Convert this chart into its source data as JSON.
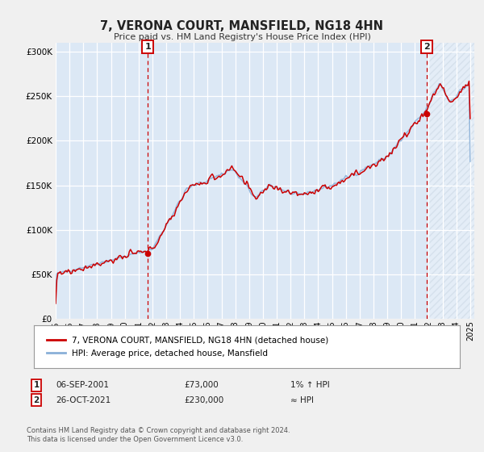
{
  "title": "7, VERONA COURT, MANSFIELD, NG18 4HN",
  "subtitle": "Price paid vs. HM Land Registry's House Price Index (HPI)",
  "bg_color": "#f0f0f0",
  "plot_bg_color": "#dce8f5",
  "line1_color": "#cc0000",
  "line2_color": "#8ab0d8",
  "grid_color": "#c8d8e8",
  "ylim": [
    0,
    310000
  ],
  "yticks": [
    0,
    50000,
    100000,
    150000,
    200000,
    250000,
    300000
  ],
  "ytick_labels": [
    "£0",
    "£50K",
    "£100K",
    "£150K",
    "£200K",
    "£250K",
    "£300K"
  ],
  "xmin": 1995.0,
  "xmax": 2025.3,
  "xticks": [
    1995,
    1996,
    1997,
    1998,
    1999,
    2000,
    2001,
    2002,
    2003,
    2004,
    2005,
    2006,
    2007,
    2008,
    2009,
    2010,
    2011,
    2012,
    2013,
    2014,
    2015,
    2016,
    2017,
    2018,
    2019,
    2020,
    2021,
    2022,
    2023,
    2024,
    2025
  ],
  "marker1_x": 2001.67,
  "marker1_y": 73000,
  "marker2_x": 2021.83,
  "marker2_y": 230000,
  "legend_line1": "7, VERONA COURT, MANSFIELD, NG18 4HN (detached house)",
  "legend_line2": "HPI: Average price, detached house, Mansfield",
  "footer1": "Contains HM Land Registry data © Crown copyright and database right 2024.",
  "footer2": "This data is licensed under the Open Government Licence v3.0."
}
